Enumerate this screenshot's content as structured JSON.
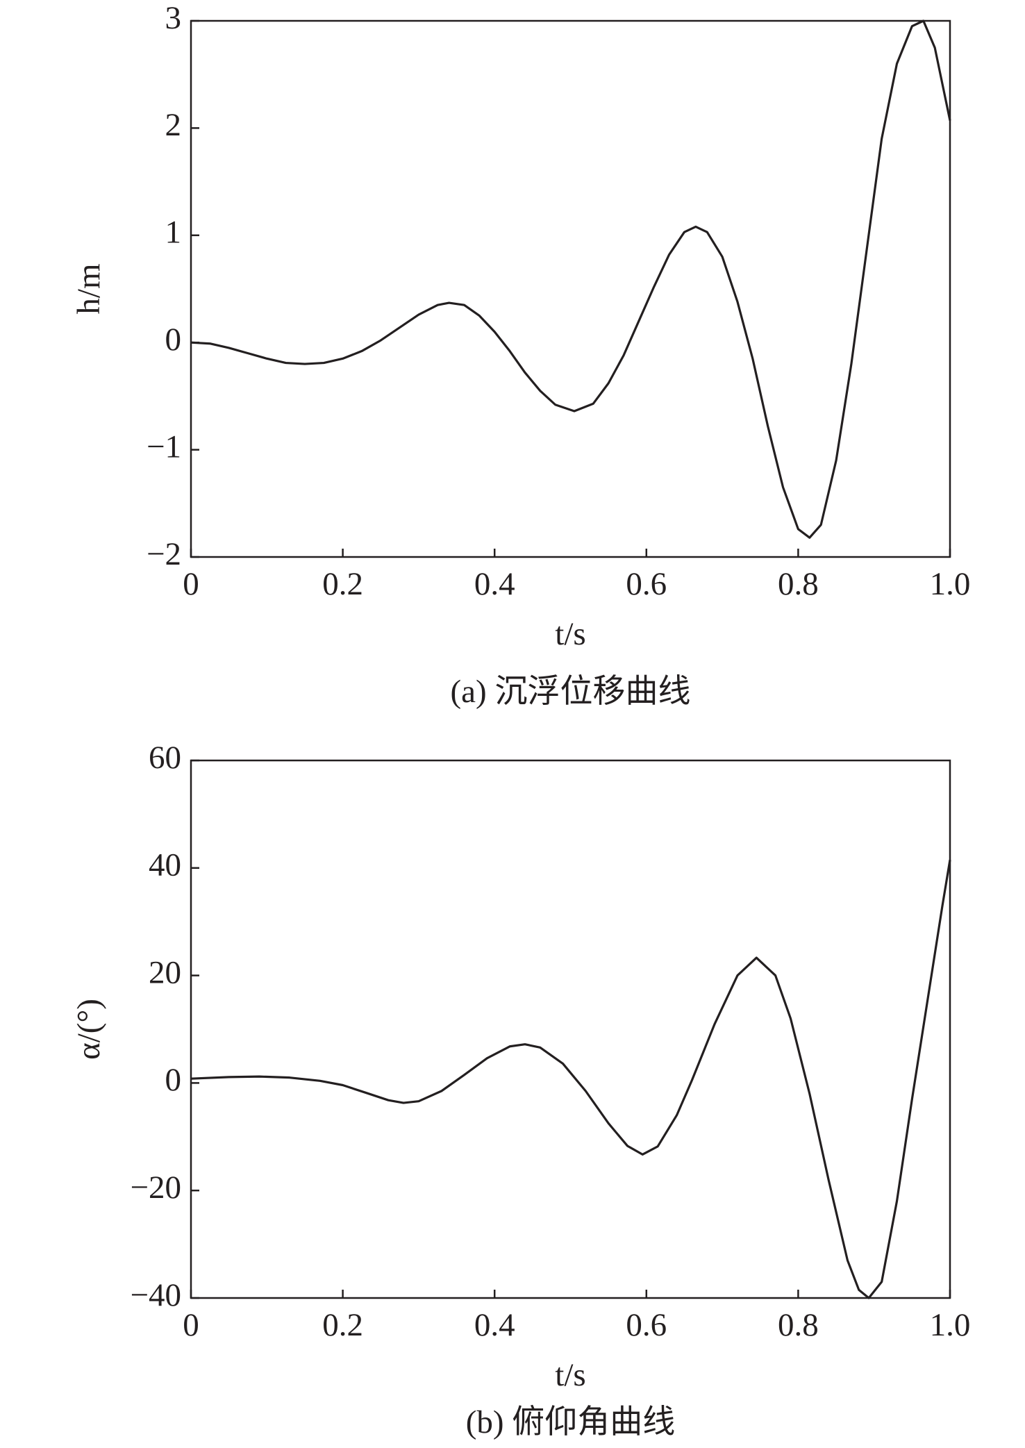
{
  "chart_data": [
    {
      "type": "line",
      "ylabel": "h/m",
      "xlabel": "t/s",
      "caption": "(a) 沉浮位移曲线",
      "xlim": [
        0,
        1
      ],
      "ylim": [
        -2,
        3
      ],
      "xticks": [
        0,
        0.2,
        0.4,
        0.6,
        0.8,
        {
          "value": 1,
          "label": "1.0"
        }
      ],
      "yticks": [
        {
          "value": -2,
          "label": "−2"
        },
        {
          "value": -1,
          "label": "−1"
        },
        0,
        1,
        2,
        3
      ],
      "color": "#231f20",
      "x": [
        0,
        0.025,
        0.05,
        0.075,
        0.1,
        0.125,
        0.15,
        0.175,
        0.2,
        0.225,
        0.25,
        0.275,
        0.3,
        0.325,
        0.34,
        0.36,
        0.38,
        0.4,
        0.42,
        0.44,
        0.46,
        0.48,
        0.505,
        0.53,
        0.55,
        0.57,
        0.59,
        0.61,
        0.63,
        0.65,
        0.665,
        0.68,
        0.7,
        0.72,
        0.74,
        0.76,
        0.78,
        0.8,
        0.815,
        0.83,
        0.85,
        0.87,
        0.89,
        0.91,
        0.93,
        0.95,
        0.965,
        0.98,
        1.0
      ],
      "values": [
        0,
        -0.01,
        -0.05,
        -0.1,
        -0.15,
        -0.19,
        -0.2,
        -0.19,
        -0.15,
        -0.08,
        0.02,
        0.14,
        0.26,
        0.35,
        0.37,
        0.35,
        0.25,
        0.1,
        -0.08,
        -0.28,
        -0.45,
        -0.58,
        -0.64,
        -0.57,
        -0.38,
        -0.12,
        0.2,
        0.52,
        0.82,
        1.03,
        1.08,
        1.03,
        0.8,
        0.38,
        -0.15,
        -0.78,
        -1.35,
        -1.74,
        -1.82,
        -1.7,
        -1.1,
        -0.2,
        0.85,
        1.9,
        2.6,
        2.95,
        3.0,
        2.75,
        2.07
      ]
    },
    {
      "type": "line",
      "ylabel": "α/(°)",
      "xlabel": "t/s",
      "caption": "(b) 俯仰角曲线",
      "xlim": [
        0,
        1
      ],
      "ylim": [
        -40,
        60
      ],
      "xticks": [
        0,
        0.2,
        0.4,
        0.6,
        0.8,
        {
          "value": 1,
          "label": "1.0"
        }
      ],
      "yticks": [
        {
          "value": -40,
          "label": "−40"
        },
        {
          "value": -20,
          "label": "−20"
        },
        0,
        20,
        40,
        60
      ],
      "color": "#231f20",
      "x": [
        0,
        0.05,
        0.09,
        0.13,
        0.17,
        0.2,
        0.23,
        0.26,
        0.28,
        0.3,
        0.33,
        0.36,
        0.39,
        0.42,
        0.44,
        0.46,
        0.49,
        0.52,
        0.55,
        0.575,
        0.595,
        0.615,
        0.64,
        0.66,
        0.69,
        0.72,
        0.745,
        0.77,
        0.79,
        0.815,
        0.84,
        0.865,
        0.88,
        0.893,
        0.91,
        0.93,
        0.95,
        0.97,
        0.99,
        1.0
      ],
      "values": [
        0.8,
        1.1,
        1.2,
        1.0,
        0.4,
        -0.4,
        -1.8,
        -3.2,
        -3.7,
        -3.4,
        -1.5,
        1.5,
        4.6,
        6.8,
        7.2,
        6.6,
        3.6,
        -1.5,
        -7.5,
        -11.7,
        -13.3,
        -11.8,
        -6,
        0.5,
        11,
        20,
        23.3,
        20,
        12,
        -2,
        -18,
        -33,
        -38.5,
        -40,
        -37,
        -22,
        -3,
        15,
        33,
        41.5
      ]
    }
  ]
}
